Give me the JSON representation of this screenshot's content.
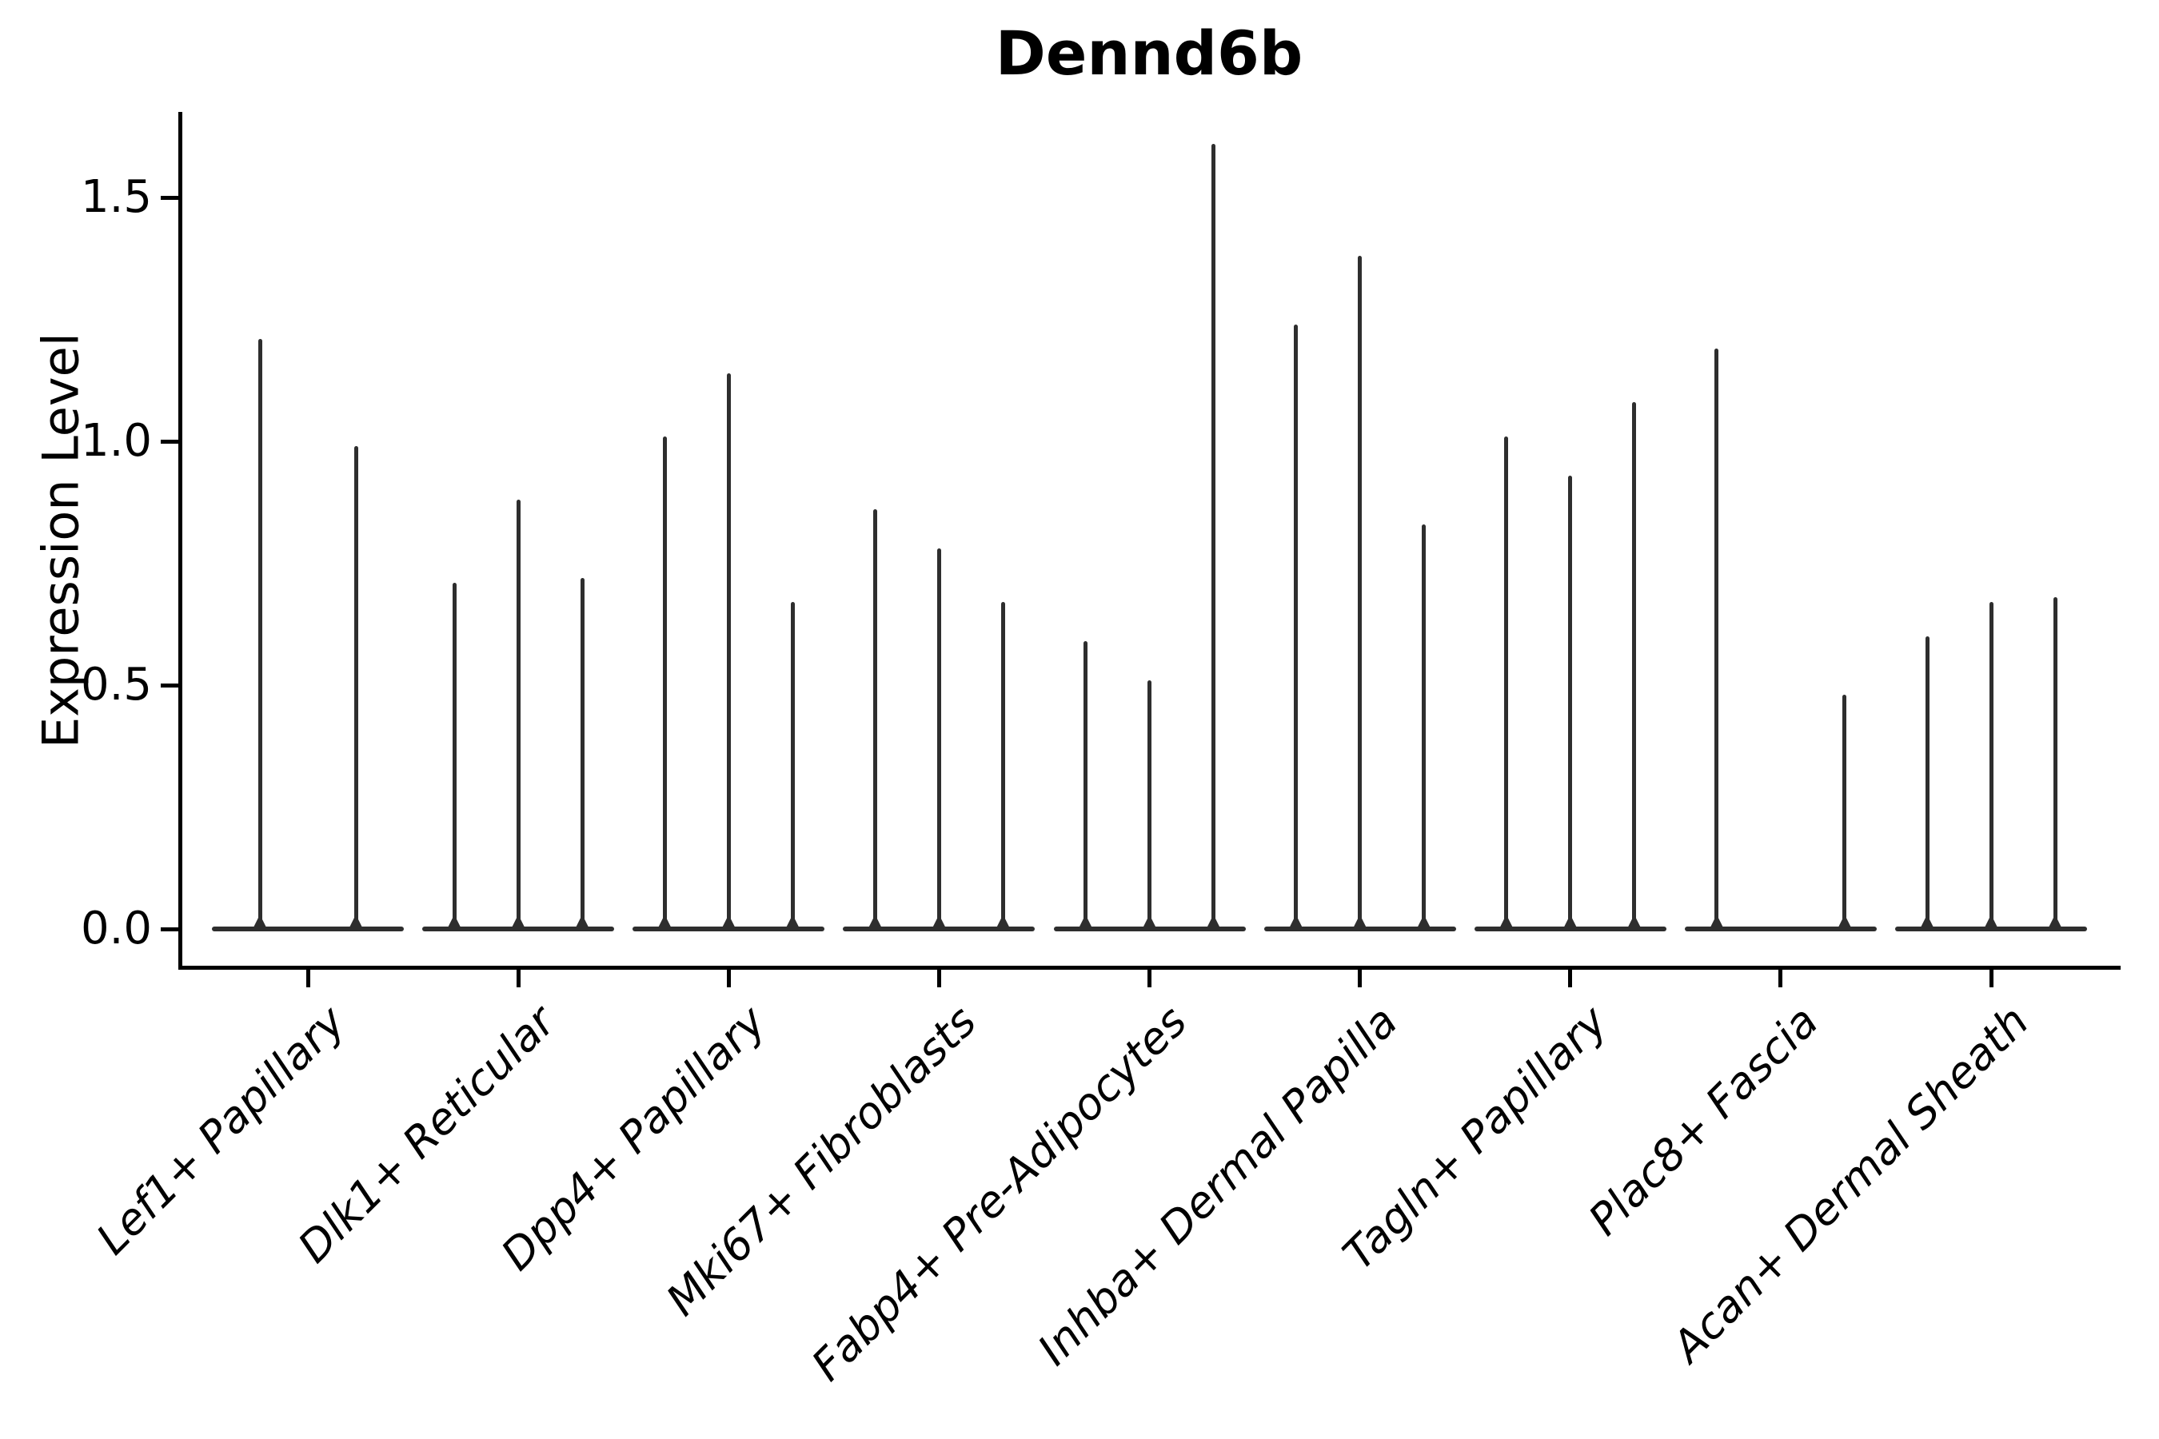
{
  "title": "Dennd6b",
  "axes": {
    "ylabel": "Expression Level",
    "yticks": [
      {
        "label": "0.0",
        "value": 0.0
      },
      {
        "label": "0.5",
        "value": 0.5
      },
      {
        "label": "1.0",
        "value": 1.0
      },
      {
        "label": "1.5",
        "value": 1.5
      }
    ]
  },
  "colors": {
    "violin": "#2e2e2e",
    "axis": "#000000",
    "background": "#ffffff"
  },
  "chart_data": {
    "type": "violin",
    "title": "Dennd6b",
    "xlabel": "",
    "ylabel": "Expression Level",
    "ylim": [
      0,
      1.68
    ],
    "ytick_values": [
      0.0,
      0.5,
      1.0,
      1.5
    ],
    "grid": false,
    "legend": false,
    "style_note": "Seurat-style violin plot; each violin collapses to a flat baseline at 0 with a single thin density spike rising to its maximum expression value",
    "categories": [
      "Lef1+ Papillary",
      "Dlk1+ Reticular",
      "Dpp4+ Papillary",
      "Mki67+ Fibroblasts",
      "Fabp4+ Pre-Adipocytes",
      "Inhba+ Dermal Papilla",
      "Tagln+ Papillary",
      "Plac8+ Fascia",
      "Acan+ Dermal Sheath"
    ],
    "groups": [
      {
        "category": "Lef1+ Papillary",
        "violin_maxima": [
          1.21,
          0.99
        ]
      },
      {
        "category": "Dlk1+ Reticular",
        "violin_maxima": [
          0.71,
          0.88,
          0.72
        ]
      },
      {
        "category": "Dpp4+ Papillary",
        "violin_maxima": [
          1.01,
          1.14,
          0.67
        ]
      },
      {
        "category": "Mki67+ Fibroblasts",
        "violin_maxima": [
          0.86,
          0.78,
          0.67
        ]
      },
      {
        "category": "Fabp4+ Pre-Adipocytes",
        "violin_maxima": [
          0.59,
          0.51,
          1.61
        ]
      },
      {
        "category": "Inhba+ Dermal Papilla",
        "violin_maxima": [
          1.24,
          1.38,
          0.83
        ]
      },
      {
        "category": "Tagln+ Papillary",
        "violin_maxima": [
          1.01,
          0.93,
          1.08
        ]
      },
      {
        "category": "Plac8+ Fascia",
        "violin_maxima": [
          1.19,
          0.0,
          0.48
        ]
      },
      {
        "category": "Acan+ Dermal Sheath",
        "violin_maxima": [
          0.6,
          0.67,
          0.68
        ]
      }
    ]
  }
}
